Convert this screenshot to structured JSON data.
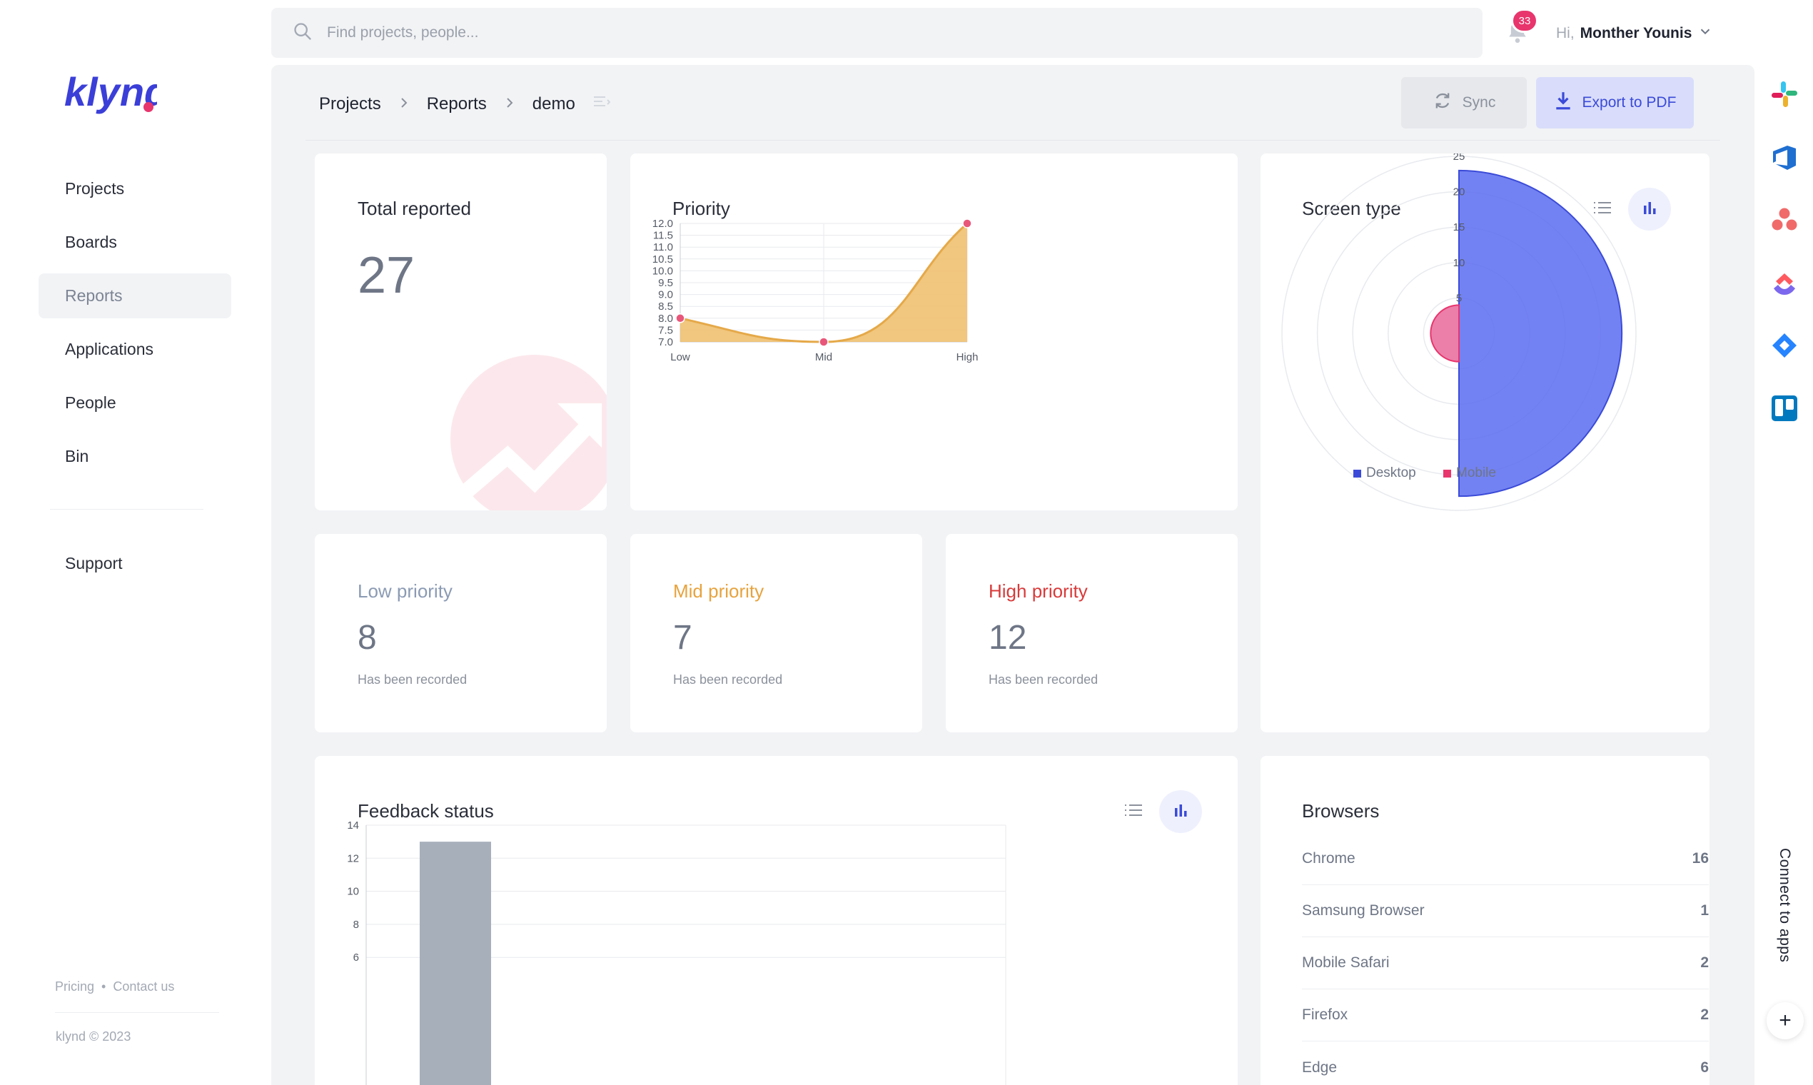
{
  "app": {
    "logo_text": "klynd"
  },
  "sidebar": {
    "items": [
      {
        "label": "Projects"
      },
      {
        "label": "Boards"
      },
      {
        "label": "Reports"
      },
      {
        "label": "Applications"
      },
      {
        "label": "People"
      },
      {
        "label": "Bin"
      }
    ],
    "support_label": "Support",
    "footer": {
      "pricing": "Pricing",
      "dot": "•",
      "contact": "Contact us",
      "copyright": "klynd © 2023"
    }
  },
  "header": {
    "search_placeholder": "Find projects, people...",
    "notification_count": "33",
    "greeting": "Hi,",
    "user_name": "Monther Younis"
  },
  "toolbar": {
    "breadcrumbs": [
      "Projects",
      "Reports",
      "demo"
    ],
    "sync_label": "Sync",
    "export_label": "Export to PDF"
  },
  "cards": {
    "total": {
      "title": "Total reported",
      "value": "27"
    },
    "priority": {
      "title": "Priority"
    },
    "low": {
      "title": "Low priority",
      "value": "8",
      "sub": "Has been recorded",
      "color": "#8b9bb4"
    },
    "mid": {
      "title": "Mid priority",
      "value": "7",
      "sub": "Has been recorded",
      "color": "#e7a33e"
    },
    "high": {
      "title": "High priority",
      "value": "12",
      "sub": "Has been recorded",
      "color": "#d93a3a"
    },
    "screen": {
      "title": "Screen type"
    },
    "feedback": {
      "title": "Feedback status"
    },
    "browsers": {
      "title": "Browsers",
      "rows": [
        {
          "name": "Chrome",
          "count": "16"
        },
        {
          "name": "Samsung Browser",
          "count": "1"
        },
        {
          "name": "Mobile Safari",
          "count": "2"
        },
        {
          "name": "Firefox",
          "count": "2"
        },
        {
          "name": "Edge",
          "count": "6"
        }
      ]
    }
  },
  "right_rail": {
    "connect_label": "Connect to apps",
    "plus_label": "+",
    "apps": [
      "slack-icon",
      "azure-devops-icon",
      "asana-icon",
      "clickup-icon",
      "jira-icon",
      "trello-icon"
    ]
  },
  "chart_data": [
    {
      "type": "area",
      "title": "Priority",
      "categories": [
        "Low",
        "Mid",
        "High"
      ],
      "values": [
        8,
        7,
        12
      ],
      "ylim": [
        7,
        12
      ],
      "yticks": [
        "7.0",
        "7.5",
        "8.0",
        "8.5",
        "9.0",
        "9.5",
        "10.0",
        "10.5",
        "11.0",
        "11.5",
        "12.0"
      ],
      "color": "#f0c070",
      "point_color": "#e8577a",
      "grid": true
    },
    {
      "type": "polar-area",
      "title": "Screen type",
      "categories": [
        "Desktop",
        "Mobile"
      ],
      "values": [
        23,
        4
      ],
      "colors": [
        "#5b6cf0",
        "#e8689a"
      ],
      "rticks": [
        "5",
        "10",
        "15",
        "20",
        "25"
      ],
      "rlim": [
        0,
        25
      ],
      "legend": "bottom"
    },
    {
      "type": "bar",
      "title": "Feedback status",
      "values": [
        13
      ],
      "yticks": [
        "6",
        "8",
        "10",
        "12",
        "14"
      ],
      "ylim": [
        6,
        14
      ],
      "color": "#a7afbb",
      "grid": true
    }
  ]
}
